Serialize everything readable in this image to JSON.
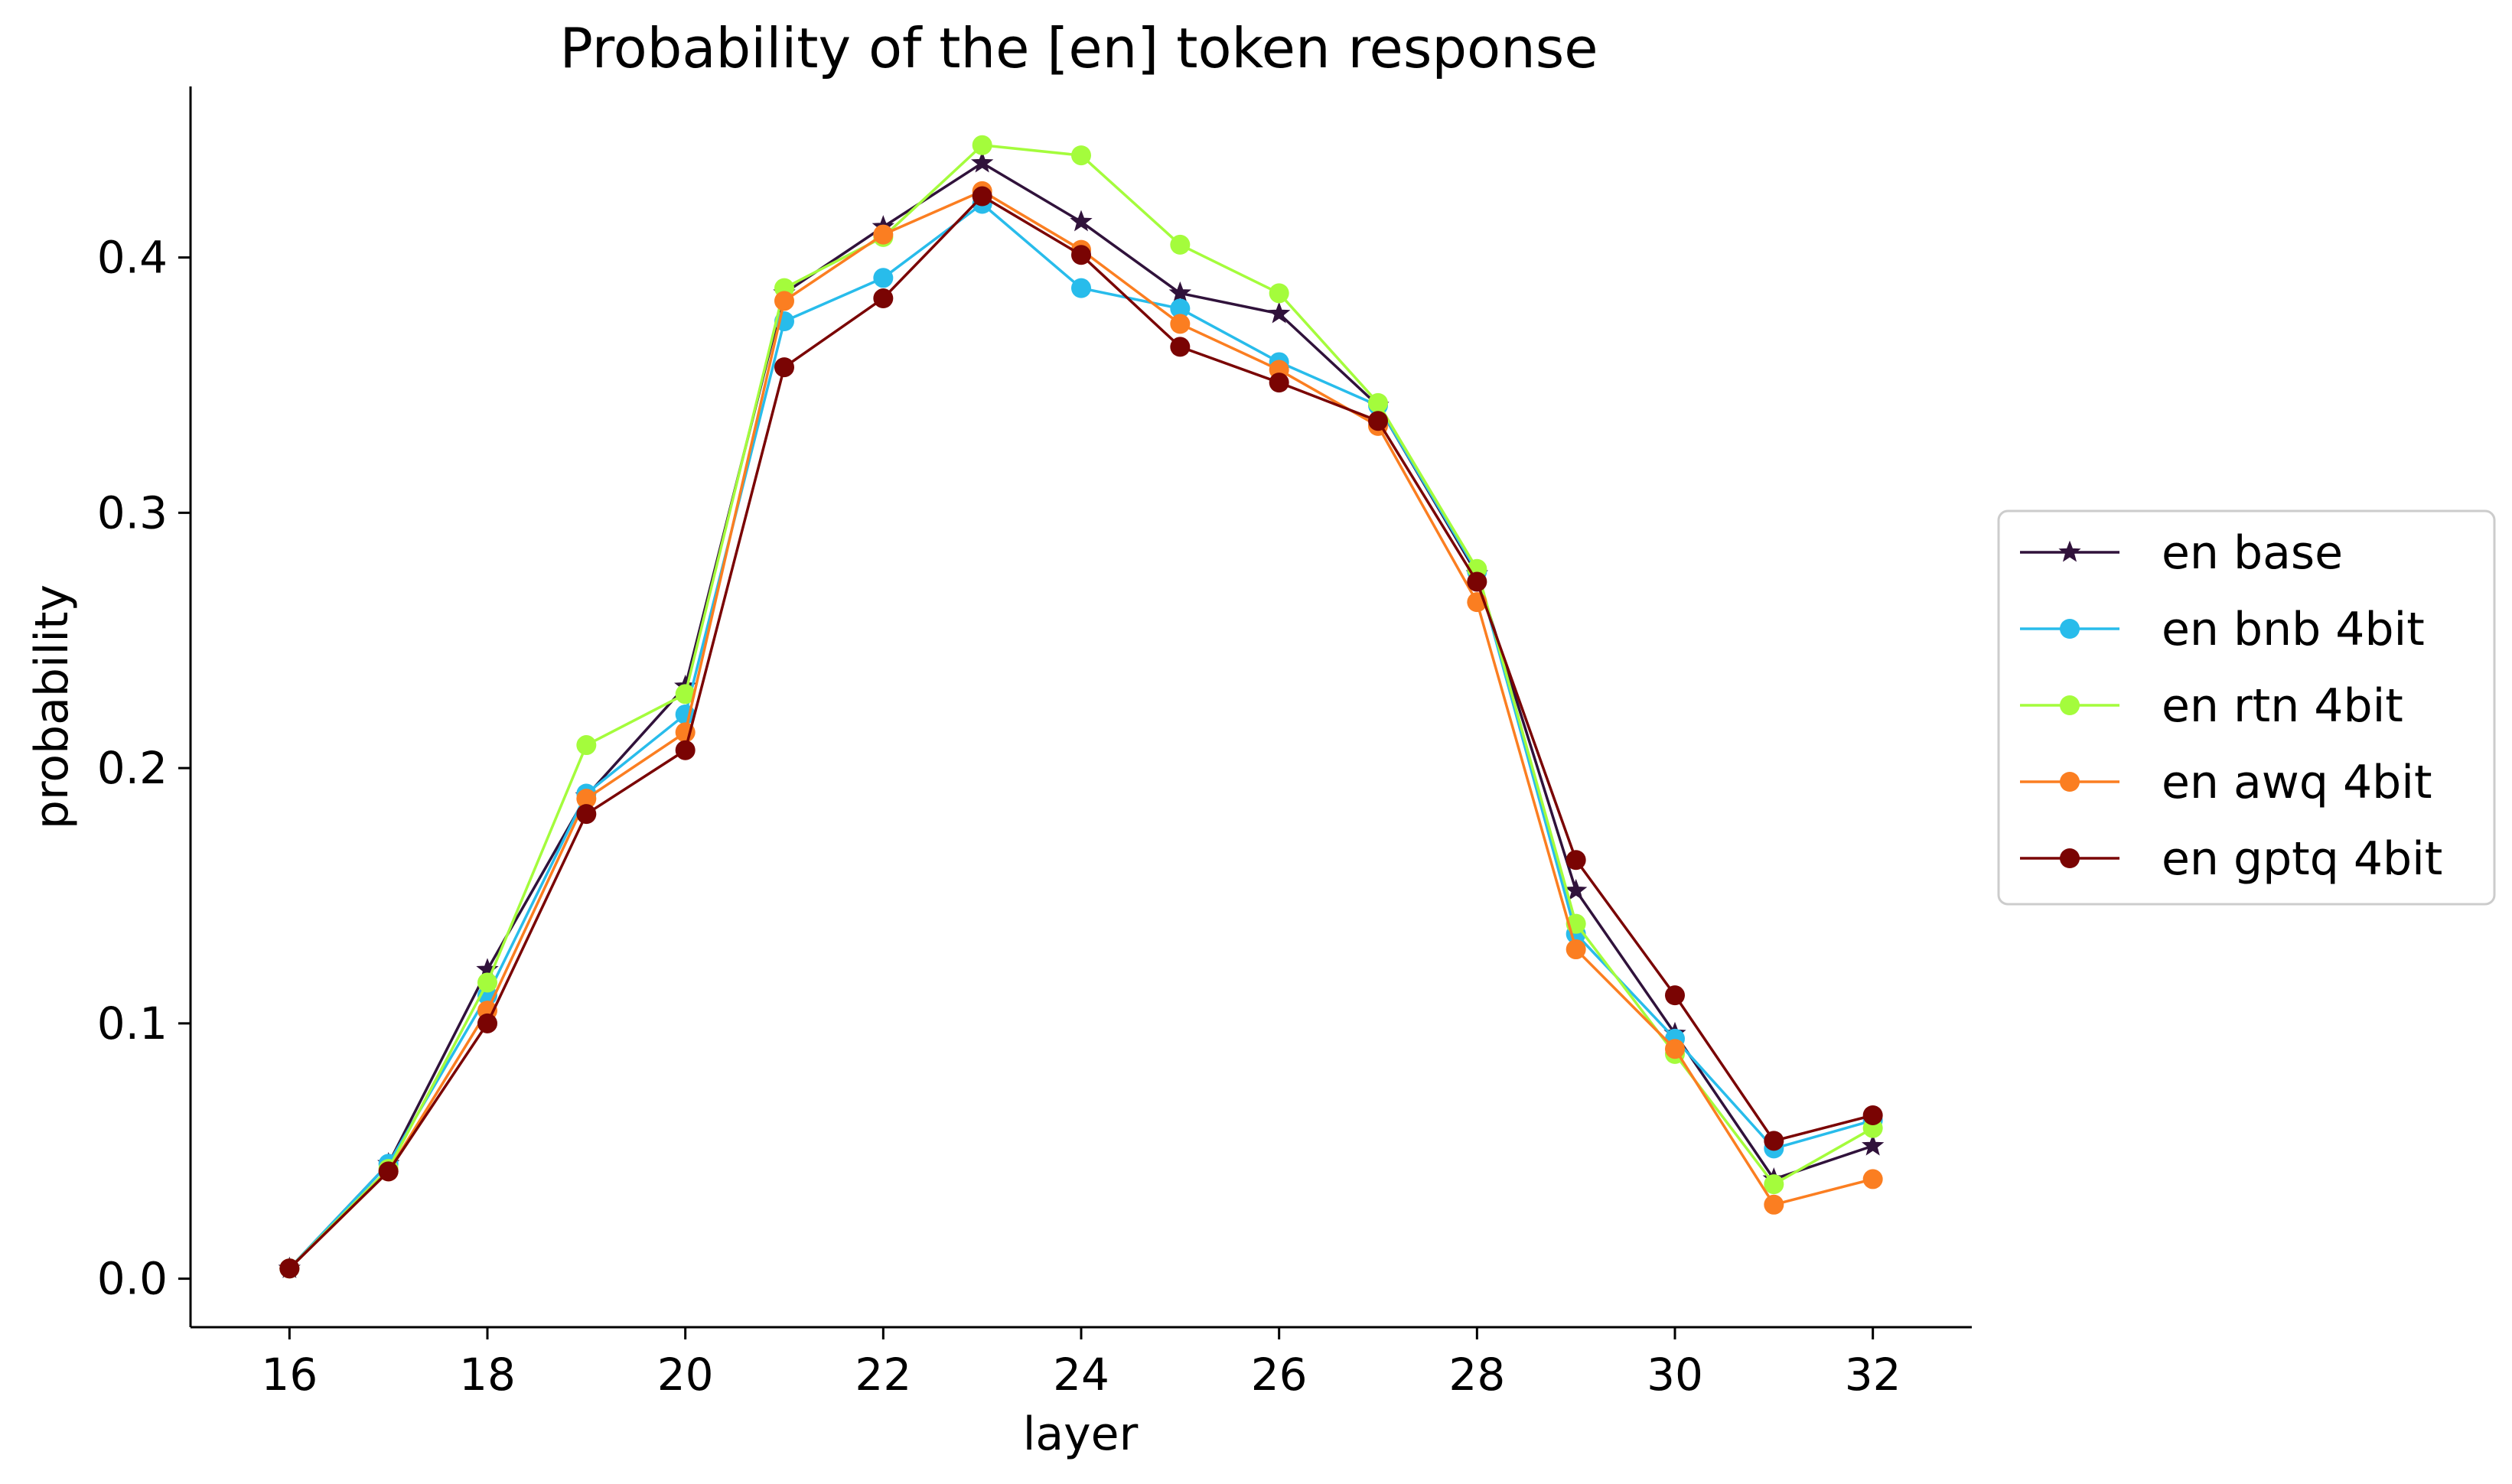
{
  "chart_data": {
    "type": "line",
    "title": "Probability of the [en] token response",
    "xlabel": "layer",
    "ylabel": "probability",
    "x": [
      16,
      17,
      18,
      19,
      20,
      21,
      22,
      23,
      24,
      25,
      26,
      27,
      28,
      29,
      30,
      31,
      32
    ],
    "xlim": [
      15,
      33
    ],
    "ylim": [
      -0.019,
      0.467
    ],
    "xticks": [
      "16",
      "18",
      "20",
      "22",
      "24",
      "26",
      "28",
      "30",
      "32"
    ],
    "yticks": [
      "0.0",
      "0.1",
      "0.2",
      "0.3",
      "0.4"
    ],
    "grid": false,
    "legend_position": "center-right-outside",
    "series": [
      {
        "name": "en base",
        "color": "#30123b",
        "marker": "star",
        "values": [
          0.004,
          0.045,
          0.121,
          0.189,
          0.232,
          0.386,
          0.412,
          0.437,
          0.414,
          0.386,
          0.378,
          0.342,
          0.276,
          0.152,
          0.096,
          0.039,
          0.052
        ]
      },
      {
        "name": "en bnb 4bit",
        "color": "#28bceb",
        "marker": "circle",
        "values": [
          0.004,
          0.045,
          0.111,
          0.19,
          0.221,
          0.375,
          0.392,
          0.421,
          0.388,
          0.38,
          0.359,
          0.342,
          0.277,
          0.135,
          0.094,
          0.051,
          0.062
        ]
      },
      {
        "name": "en rtn 4bit",
        "color": "#a4fc3c",
        "marker": "circle",
        "values": [
          0.004,
          0.043,
          0.116,
          0.209,
          0.229,
          0.388,
          0.408,
          0.444,
          0.44,
          0.405,
          0.386,
          0.343,
          0.278,
          0.139,
          0.088,
          0.037,
          0.059
        ]
      },
      {
        "name": "en awq 4bit",
        "color": "#fb7e21",
        "marker": "circle",
        "values": [
          0.004,
          0.042,
          0.105,
          0.188,
          0.214,
          0.383,
          0.409,
          0.426,
          0.403,
          0.374,
          0.356,
          0.334,
          0.265,
          0.129,
          0.09,
          0.029,
          0.039
        ]
      },
      {
        "name": "en gptq 4bit",
        "color": "#7a0403",
        "marker": "circle",
        "values": [
          0.004,
          0.042,
          0.1,
          0.182,
          0.207,
          0.357,
          0.384,
          0.424,
          0.401,
          0.365,
          0.351,
          0.336,
          0.273,
          0.164,
          0.111,
          0.054,
          0.064
        ]
      }
    ]
  }
}
